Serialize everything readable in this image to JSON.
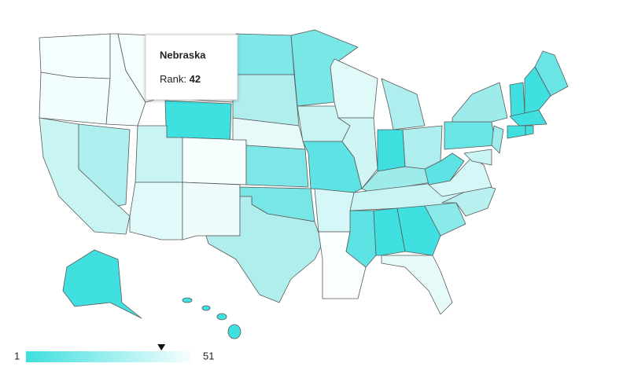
{
  "tooltip": {
    "title": "Nebraska",
    "label": "Rank:",
    "value": 42
  },
  "legend": {
    "min": 1,
    "max": 51
  }
}
